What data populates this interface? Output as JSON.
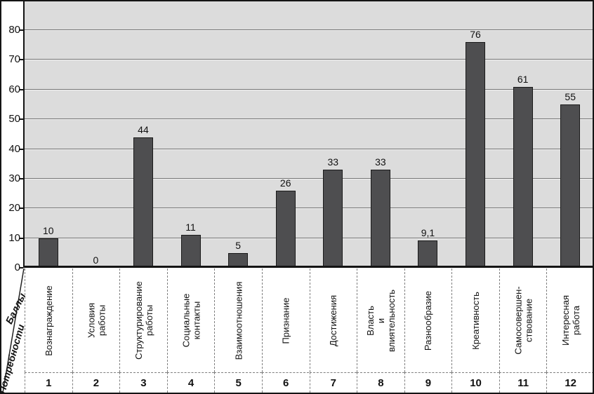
{
  "chart_data": {
    "type": "bar",
    "title": "",
    "ylabel": "Баллы",
    "xlabel": "Потребности",
    "ylim": [
      0,
      80
    ],
    "yticks": [
      0,
      10,
      20,
      30,
      40,
      50,
      60,
      70,
      80
    ],
    "grid": true,
    "legend": false,
    "colors": {
      "bar": "#4e4e50",
      "bar_border": "#1a1a1a",
      "plot_background": "#dcdcdc",
      "gridline": "#747474",
      "dashed_divider": "#7f7f7f",
      "axis": "#141414",
      "text": "#111111"
    },
    "categories": [
      {
        "num": "1",
        "label": "Вознаграждение",
        "value": 10,
        "value_label": "10"
      },
      {
        "num": "2",
        "label": "Условия работы",
        "value": 0,
        "value_label": "0"
      },
      {
        "num": "3",
        "label": "Структурирование\nработы",
        "value": 44,
        "value_label": "44"
      },
      {
        "num": "4",
        "label": "Социальные\nконтакты",
        "value": 11,
        "value_label": "11"
      },
      {
        "num": "5",
        "label": "Взаимоотношения",
        "value": 5,
        "value_label": "5"
      },
      {
        "num": "6",
        "label": "Признание",
        "value": 26,
        "value_label": "26"
      },
      {
        "num": "7",
        "label": "Достижения",
        "value": 33,
        "value_label": "33"
      },
      {
        "num": "8",
        "label": "Власть\nи влиятельность",
        "value": 33,
        "value_label": "33"
      },
      {
        "num": "9",
        "label": "Разнообразие",
        "value": 9.1,
        "value_label": "9,1"
      },
      {
        "num": "10",
        "label": "Креативность",
        "value": 76,
        "value_label": "76"
      },
      {
        "num": "11",
        "label": "Самосовершен-\nствование",
        "value": 61,
        "value_label": "61"
      },
      {
        "num": "12",
        "label": "Интересная\nработа",
        "value": 55,
        "value_label": "55"
      }
    ]
  }
}
